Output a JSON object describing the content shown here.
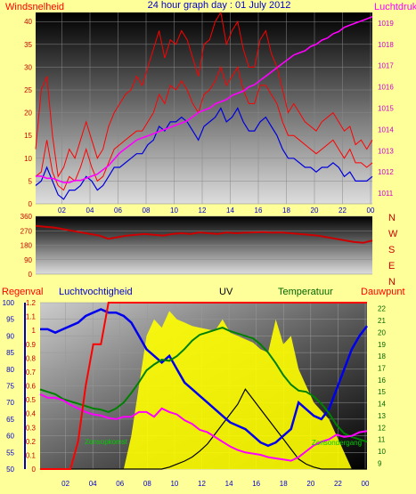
{
  "colors": {
    "background": "#ffff99",
    "wind": "#ff0000",
    "gust": "#ff0000",
    "avg_wind": "#0000dd",
    "pressure": "#ff00ff",
    "direction": "#cc0000",
    "humidity": "#0000ee",
    "uv": "#ffff00",
    "temperature": "#008000",
    "dewpoint": "#ff00ff",
    "rain": "#ff0000",
    "solar": "#000000",
    "title": "#0000cc"
  },
  "chart_data": [
    {
      "type": "line",
      "title": "24 hour graph day : 01 July 2012",
      "ylabel": "Windsnelheid",
      "y2label": "Luchtdruk",
      "x_ticks": [
        "02",
        "04",
        "06",
        "08",
        "10",
        "12",
        "14",
        "16",
        "18",
        "20",
        "22",
        "00"
      ],
      "y_ticks": [
        "0",
        "5",
        "10",
        "15",
        "20",
        "25",
        "30",
        "35",
        "40"
      ],
      "ylim": [
        0,
        42
      ],
      "y2_ticks": [
        "1011",
        "1012",
        "1013",
        "1014",
        "1015",
        "1016",
        "1017",
        "1018",
        "1019"
      ],
      "y2lim": [
        1010.5,
        1019.5
      ],
      "series": [
        {
          "values": [
            6,
            7,
            14,
            7,
            4,
            3,
            6,
            5,
            8,
            12,
            8,
            5,
            6,
            9,
            12,
            13,
            14,
            15,
            16,
            16,
            18,
            20,
            24,
            22,
            26,
            25,
            27,
            25,
            22,
            20,
            24,
            25,
            27,
            30,
            26,
            28,
            30,
            25,
            22,
            22,
            26,
            26,
            24,
            22,
            18,
            15,
            15,
            14,
            13,
            12,
            11,
            12,
            13,
            14,
            12,
            10,
            12,
            9,
            9,
            8,
            9
          ]
        },
        {
          "values": [
            12,
            25,
            28,
            15,
            6,
            8,
            12,
            10,
            14,
            18,
            14,
            10,
            12,
            17,
            20,
            22,
            24,
            25,
            28,
            26,
            30,
            34,
            38,
            32,
            36,
            35,
            38,
            36,
            32,
            28,
            35,
            36,
            40,
            42,
            35,
            38,
            40,
            34,
            30,
            30,
            36,
            38,
            33,
            30,
            25,
            20,
            22,
            20,
            18,
            17,
            16,
            18,
            19,
            20,
            18,
            16,
            17,
            13,
            14,
            12,
            14
          ]
        },
        {
          "values": [
            4,
            5,
            8,
            5,
            2,
            1,
            3,
            3,
            4,
            6,
            5,
            3,
            4,
            6,
            8,
            8,
            9,
            10,
            11,
            11,
            13,
            14,
            17,
            16,
            18,
            18,
            19,
            18,
            16,
            14,
            17,
            18,
            19,
            21,
            18,
            19,
            21,
            18,
            16,
            16,
            18,
            19,
            17,
            15,
            12,
            10,
            10,
            9,
            8,
            8,
            7,
            8,
            8,
            9,
            8,
            6,
            7,
            5,
            5,
            5,
            6
          ]
        },
        {
          "values": [
            1011.8,
            1011.8,
            1011.7,
            1011.7,
            1011.6,
            1011.5,
            1011.5,
            1011.6,
            1011.6,
            1011.7,
            1011.8,
            1011.9,
            1012.1,
            1012.3,
            1012.6,
            1012.9,
            1013.1,
            1013.3,
            1013.5,
            1013.6,
            1013.7,
            1013.8,
            1013.9,
            1014.0,
            1014.1,
            1014.2,
            1014.3,
            1014.4,
            1014.6,
            1014.8,
            1014.9,
            1015.0,
            1015.2,
            1015.3,
            1015.4,
            1015.6,
            1015.7,
            1015.8,
            1016.0,
            1016.1,
            1016.3,
            1016.5,
            1016.7,
            1016.9,
            1017.1,
            1017.3,
            1017.5,
            1017.6,
            1017.7,
            1017.9,
            1018.0,
            1018.2,
            1018.3,
            1018.5,
            1018.6,
            1018.8,
            1018.9,
            1019.0,
            1019.1,
            1019.2,
            1019.3
          ]
        }
      ]
    },
    {
      "type": "line",
      "y_ticks": [
        "0",
        "90",
        "180",
        "270",
        "360"
      ],
      "ylim": [
        0,
        360
      ],
      "direction_labels": [
        "N",
        "W",
        "S",
        "E",
        "N"
      ],
      "series": [
        {
          "values": [
            300,
            295,
            290,
            280,
            270,
            260,
            250,
            240,
            220,
            230,
            240,
            245,
            250,
            245,
            240,
            250,
            255,
            250,
            260,
            255,
            250,
            260,
            255,
            258,
            260,
            262,
            258,
            260,
            255,
            250,
            245,
            240,
            230,
            220,
            210,
            200,
            195,
            210
          ]
        }
      ]
    },
    {
      "type": "line",
      "legend": [
        "Regenval",
        "Luchtvochtigheid",
        "UV",
        "Temperatuur",
        "Dauwpunt"
      ],
      "x_ticks": [
        "02",
        "04",
        "06",
        "08",
        "10",
        "12",
        "14",
        "16",
        "18",
        "20",
        "22",
        "00"
      ],
      "humidity_ticks": [
        "50",
        "55",
        "60",
        "65",
        "70",
        "75",
        "80",
        "85",
        "90",
        "95",
        "100"
      ],
      "humidity_lim": [
        50,
        100
      ],
      "rain_ticks": [
        "0",
        "0.1",
        "0.2",
        "0.3",
        "0.4",
        "0.5",
        "0.6",
        "0.7",
        "0.8",
        "0.9",
        "1",
        "1.1",
        "1.2"
      ],
      "rain_lim": [
        0,
        1.2
      ],
      "temp_ticks": [
        "9",
        "10",
        "11",
        "12",
        "13",
        "14",
        "15",
        "16",
        "17",
        "18",
        "19",
        "20",
        "21",
        "22"
      ],
      "temp_lim": [
        8.5,
        22.5
      ],
      "annotations": [
        "Zonsopkomst",
        "Zonsondergang"
      ],
      "series": [
        {
          "values": [
            92,
            92,
            91,
            92,
            93,
            94,
            96,
            97,
            98,
            97,
            97,
            96,
            94,
            90,
            86,
            84,
            82,
            84,
            80,
            76,
            74,
            72,
            70,
            68,
            66,
            64,
            63,
            62,
            60,
            58,
            57,
            58,
            60,
            62,
            70,
            68,
            66,
            65,
            68,
            74,
            80,
            86,
            90,
            93
          ]
        },
        {
          "values": [
            15.2,
            15.0,
            14.8,
            14.4,
            14.2,
            14.0,
            13.8,
            13.6,
            13.5,
            13.3,
            13.6,
            14.1,
            14.9,
            15.8,
            16.8,
            17.3,
            17.7,
            17.6,
            18.0,
            18.6,
            19.3,
            19.8,
            20.0,
            20.2,
            20.4,
            20.1,
            19.9,
            19.7,
            19.5,
            19.0,
            18.3,
            17.4,
            16.4,
            15.6,
            15.1,
            15.0,
            14.6,
            14.0,
            13.2,
            12.2,
            11.5,
            11.2,
            11.0,
            10.8
          ]
        },
        {
          "values": [
            14.8,
            14.5,
            14.5,
            14.3,
            13.9,
            13.6,
            13.3,
            13.1,
            13.0,
            12.8,
            12.7,
            12.9,
            12.9,
            13.3,
            13.3,
            12.9,
            13.6,
            13.3,
            13.1,
            12.6,
            12.3,
            11.8,
            11.6,
            11.2,
            10.8,
            10.4,
            10.1,
            9.9,
            9.8,
            9.7,
            9.5,
            9.4,
            9.3,
            9.2,
            9.5,
            10.0,
            10.5,
            10.8,
            11.0,
            11.4,
            11.2,
            11.3,
            11.6,
            11.7
          ]
        },
        {
          "values": [
            0,
            0,
            0,
            0,
            0,
            0.2,
            0.6,
            0.9,
            0.9,
            1.2,
            1.2,
            1.2,
            1.2,
            1.2,
            1.2,
            1.2,
            1.2,
            1.2,
            1.2,
            1.2,
            1.2,
            1.2,
            1.2,
            1.2,
            1.2,
            1.2,
            1.2,
            1.2,
            1.2,
            1.2,
            1.2,
            1.2,
            1.2,
            1.2,
            1.2,
            1.2,
            1.2,
            1.2,
            1.2,
            1.2,
            1.2,
            1.2,
            1.2,
            1.2
          ]
        },
        {
          "values": [
            0,
            0,
            0,
            0,
            0,
            0,
            0,
            0,
            0,
            0,
            0,
            0,
            0,
            0,
            0,
            0,
            0,
            0.02,
            0.05,
            0.08,
            0.12,
            0.18,
            0.25,
            0.35,
            0.45,
            0.55,
            0.65,
            0.8,
            0.7,
            0.6,
            0.5,
            0.4,
            0.3,
            0.2,
            0.1,
            0.05,
            0.02,
            0,
            0,
            0,
            0,
            0,
            0,
            0
          ]
        },
        {
          "values": [
            0,
            0,
            0,
            0,
            0,
            0,
            0,
            0,
            0,
            0,
            0,
            0,
            0.2,
            0.5,
            0.8,
            0.9,
            0.85,
            0.95,
            0.9,
            0.88,
            0.86,
            0.85,
            0.84,
            0.83,
            0.9,
            0.82,
            0.8,
            0.78,
            0.76,
            0.72,
            0.7,
            0.9,
            0.75,
            0.8,
            0.6,
            0.5,
            0.4,
            0.35,
            0.3,
            0.2,
            0.1,
            0,
            0,
            0
          ]
        }
      ]
    }
  ]
}
